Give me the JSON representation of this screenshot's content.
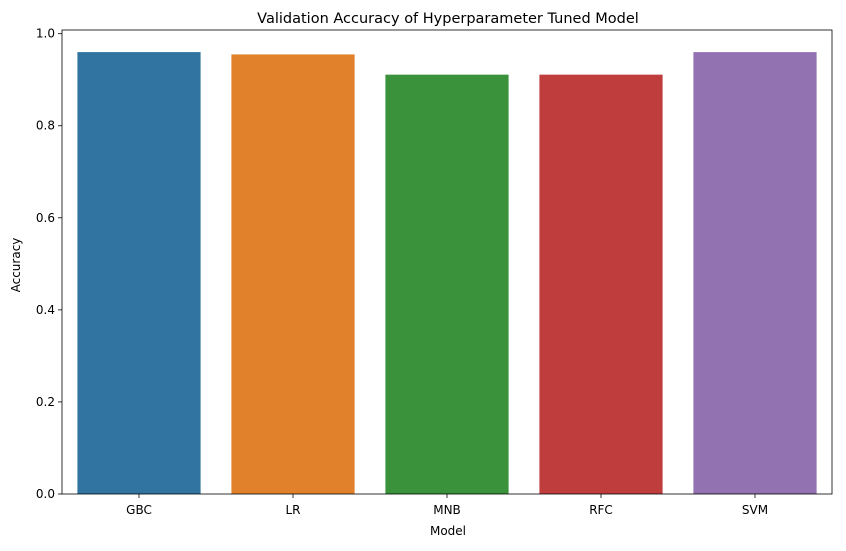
{
  "chart_data": {
    "type": "bar",
    "title": "Validation Accuracy of Hyperparameter Tuned Model",
    "xlabel": "Model",
    "ylabel": "Accuracy",
    "categories": [
      "GBC",
      "LR",
      "MNB",
      "RFC",
      "SVM"
    ],
    "values": [
      0.96,
      0.955,
      0.911,
      0.911,
      0.96
    ],
    "colors": [
      "#3274a1",
      "#e1812c",
      "#3a923a",
      "#c03d3e",
      "#9372b2"
    ],
    "ylim": [
      0,
      1.008
    ],
    "yticks": [
      0.0,
      0.2,
      0.4,
      0.6,
      0.8,
      1.0
    ],
    "ytick_labels": [
      "0.0",
      "0.2",
      "0.4",
      "0.6",
      "0.8",
      "1.0"
    ],
    "grid": false,
    "legend": "none"
  }
}
